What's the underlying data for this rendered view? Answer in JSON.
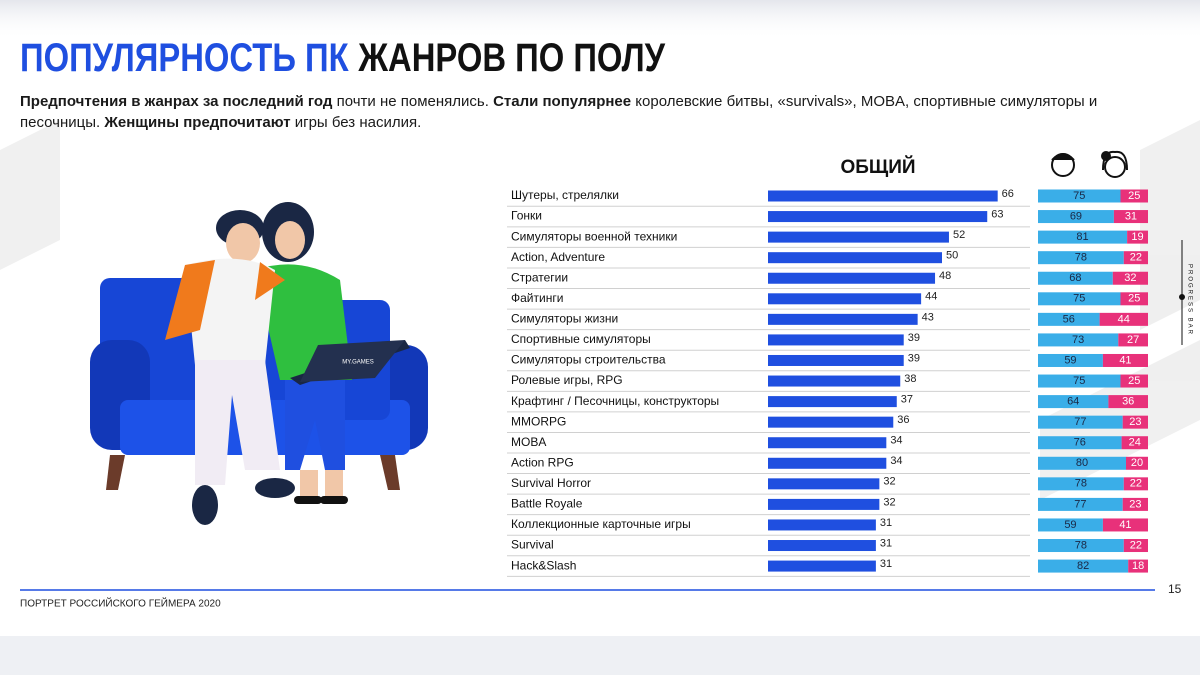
{
  "header": {
    "title_highlight": "ПОПУЛЯРНОСТЬ ПК",
    "title_rest": "ЖАНРОВ ПО ПОЛУ",
    "subtitle": [
      {
        "text": "Предпочтения в жанрах за последний год",
        "bold": true
      },
      {
        "text": " почти не поменялись. ",
        "bold": false
      },
      {
        "text": "Стали популярнее",
        "bold": true
      },
      {
        "text": " королевские битвы, «survivals», MOBA, спортивные симуляторы и песочницы. ",
        "bold": false
      },
      {
        "text": "Женщины предпочитают",
        "bold": true
      },
      {
        "text": " игры без насилия.",
        "bold": false
      }
    ]
  },
  "illustration_label": "MY.GAMES",
  "side_label": "PROGRESS BAR",
  "footer": {
    "text": "ПОРТРЕТ РОССИЙСКОГО ГЕЙМЕРА 2020",
    "page": "15"
  },
  "chart_data": [
    {
      "type": "bar",
      "orientation": "horizontal",
      "title": "ОБЩИЙ",
      "color": "#1f4fe0",
      "categories": [
        "Шутеры, стрелялки",
        "Гонки",
        "Симуляторы военной техники",
        "Action, Adventure",
        "Стратегии",
        "Файтинги",
        "Симуляторы жизни",
        "Спортивные симуляторы",
        "Симуляторы строительства",
        "Ролевые игры, RPG",
        "Крафтинг / Песочницы, конструкторы",
        "MMORPG",
        "MOBA",
        "Action RPG",
        "Survival Horror",
        "Battle Royale",
        "Коллекционные карточные игры",
        "Survival",
        "Hack&Slash"
      ],
      "values": [
        66,
        63,
        52,
        50,
        48,
        44,
        43,
        39,
        39,
        38,
        37,
        36,
        34,
        34,
        32,
        32,
        31,
        31,
        31
      ]
    },
    {
      "type": "stacked_bar",
      "orientation": "horizontal",
      "series": [
        {
          "color": "#3aaee8",
          "values": [
            75,
            69,
            81,
            78,
            68,
            75,
            56,
            73,
            59,
            75,
            64,
            77,
            76,
            80,
            78,
            77,
            59,
            78,
            82
          ]
        },
        {
          "color": "#e8317a",
          "values": [
            25,
            31,
            19,
            22,
            32,
            25,
            44,
            27,
            41,
            25,
            36,
            23,
            24,
            20,
            22,
            23,
            41,
            22,
            18
          ]
        }
      ]
    }
  ]
}
